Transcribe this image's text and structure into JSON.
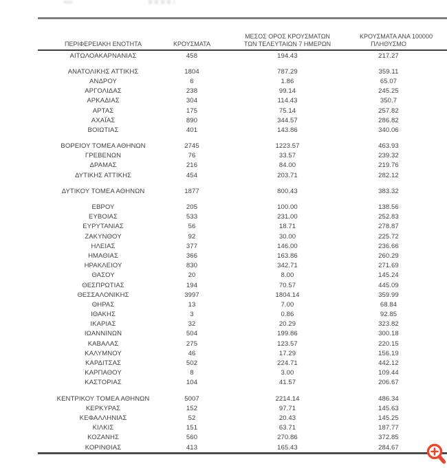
{
  "table": {
    "header": {
      "col1": "ΠΕΡΙΦΕΡΕΙΑΚΗ ΕΝΟΤΗΤΑ",
      "col2": "ΚΡΟΥΣΜΑΤΑ",
      "col3_line1": "ΜΕΣΟΣ ΟΡΟΣ ΚΡΟΥΣΜΑΤΩΝ",
      "col3_line2": "ΤΩΝ ΤΕΛΕΥΤΑΙΩΝ 7 ΗΜΕΡΩΝ",
      "col4_line1": "ΚΡΟΥΣΜΑΤΑ ΑΝΑ 100000",
      "col4_line2": "ΠΛΗΘΥΣΜΟ"
    },
    "groups": [
      {
        "rows": [
          [
            "ΑΙΤΩΛΟΑΚΑΡΝΑΝΙΑΣ",
            "458",
            "194.43",
            "217.27"
          ]
        ]
      },
      {
        "rows": [
          [
            "ΑΝΑΤΟΛΙΚΗΣ ΑΤΤΙΚΗΣ",
            "1804",
            "787.29",
            "359.11"
          ],
          [
            "ΑΝΔΡΟΥ",
            "6",
            "1.86",
            "65.07"
          ],
          [
            "ΑΡΓΟΛΙΔΑΣ",
            "238",
            "99.14",
            "245.25"
          ],
          [
            "ΑΡΚΑΔΙΑΣ",
            "304",
            "114.43",
            "350.7"
          ],
          [
            "ΑΡΤΑΣ",
            "175",
            "75.14",
            "257.82"
          ],
          [
            "ΑΧΑΪΑΣ",
            "890",
            "344.57",
            "286.82"
          ],
          [
            "ΒΟΙΩΤΙΑΣ",
            "401",
            "143.86",
            "340.06"
          ]
        ]
      },
      {
        "rows": [
          [
            "ΒΟΡΕΙΟΥ ΤΟΜΕΑ ΑΘΗΝΩΝ",
            "2745",
            "1223.57",
            "463.93"
          ],
          [
            "ΓΡΕΒΕΝΩΝ",
            "76",
            "33.57",
            "239.32"
          ],
          [
            "ΔΡΑΜΑΣ",
            "216",
            "84.00",
            "219.76"
          ],
          [
            "ΔΥΤΙΚΗΣ ΑΤΤΙΚΗΣ",
            "454",
            "203.71",
            "282.12"
          ]
        ]
      },
      {
        "rows": [
          [
            "ΔΥΤΙΚΟΥ ΤΟΜΕΑ ΑΘΗΝΩΝ",
            "1877",
            "800.43",
            "383.32"
          ]
        ]
      },
      {
        "rows": [
          [
            "ΕΒΡΟΥ",
            "205",
            "100.00",
            "138.56"
          ],
          [
            "ΕΥΒΟΙΑΣ",
            "533",
            "231.00",
            "252.83"
          ],
          [
            "ΕΥΡΥΤΑΝΙΑΣ",
            "56",
            "18.71",
            "278.87"
          ],
          [
            "ΖΑΚΥΝΘΟΥ",
            "92",
            "30.00",
            "225.72"
          ],
          [
            "ΗΛΕΙΑΣ",
            "377",
            "146.00",
            "236.66"
          ],
          [
            "ΗΜΑΘΙΑΣ",
            "366",
            "163.86",
            "260.29"
          ],
          [
            "ΗΡΑΚΛΕΙΟΥ",
            "830",
            "342.71",
            "271.69"
          ],
          [
            "ΘΑΣΟΥ",
            "20",
            "8.00",
            "145.24"
          ],
          [
            "ΘΕΣΠΡΩΤΙΑΣ",
            "194",
            "70.57",
            "445.09"
          ],
          [
            "ΘΕΣΣΑΛΟΝΙΚΗΣ",
            "3997",
            "1804.14",
            "359.99"
          ],
          [
            "ΘΗΡΑΣ",
            "13",
            "7.00",
            "68.84"
          ],
          [
            "ΙΘΑΚΗΣ",
            "3",
            "0.86",
            "92.85"
          ],
          [
            "ΙΚΑΡΙΑΣ",
            "32",
            "20.29",
            "323.82"
          ],
          [
            "ΙΩΑΝΝΙΝΩΝ",
            "504",
            "199.86",
            "300.18"
          ],
          [
            "ΚΑΒΑΛΑΣ",
            "275",
            "123.57",
            "220.15"
          ],
          [
            "ΚΑΛΥΜΝΟΥ",
            "46",
            "17.29",
            "156.19"
          ],
          [
            "ΚΑΡΔΙΤΣΑΣ",
            "502",
            "224.71",
            "442.12"
          ],
          [
            "ΚΑΡΠΑΘΟΥ",
            "8",
            "3.00",
            "109.44"
          ],
          [
            "ΚΑΣΤΟΡΙΑΣ",
            "104",
            "41.57",
            "206.67"
          ]
        ]
      },
      {
        "rows": [
          [
            "ΚΕΝΤΡΙΚΟΥ ΤΟΜΕΑ ΑΘΗΝΩΝ",
            "5007",
            "2214.14",
            "486.34"
          ],
          [
            "ΚΕΡΚΥΡΑΣ",
            "152",
            "97.71",
            "145.63"
          ],
          [
            "ΚΕΦΑΛΛΗΝΙΑΣ",
            "52",
            "20.43",
            "145.25"
          ],
          [
            "ΚΙΛΚΙΣ",
            "151",
            "63.71",
            "187.77"
          ],
          [
            "ΚΟΖΑΝΗΣ",
            "560",
            "270.86",
            "372.85"
          ],
          [
            "ΚΟΡΙΝΘΙΑΣ",
            "413",
            "165.43",
            "284.67"
          ]
        ]
      }
    ]
  },
  "overlay": {
    "zoom_icon": "magnifier-plus",
    "accent_color": "#e8472b"
  },
  "colors": {
    "text": "#3f3f3f",
    "rule_top": "#7d7d7d",
    "rule_header": "#3c3c3c",
    "rule_bottom": "#4a4a4a",
    "background": "#ffffff"
  }
}
